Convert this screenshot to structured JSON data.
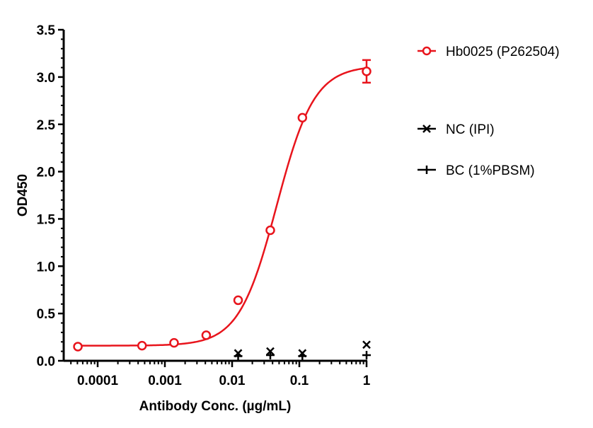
{
  "chart_data": {
    "type": "scatter",
    "title": "",
    "xlabel": "Antibody Conc. (µg/mL)",
    "ylabel": "OD450",
    "xscale": "log",
    "xlim": [
      4e-05,
      1
    ],
    "ylim": [
      0,
      3.5
    ],
    "xticks": [
      {
        "v": 0.0001,
        "label": "0.0001"
      },
      {
        "v": 0.001,
        "label": "0.001"
      },
      {
        "v": 0.01,
        "label": "0.01"
      },
      {
        "v": 0.1,
        "label": "0.1"
      },
      {
        "v": 1,
        "label": "1"
      }
    ],
    "yticks": [
      {
        "v": 0,
        "label": "0.0"
      },
      {
        "v": 0.5,
        "label": "0.5"
      },
      {
        "v": 1,
        "label": "1.0"
      },
      {
        "v": 1.5,
        "label": "1.5"
      },
      {
        "v": 2,
        "label": "2.0"
      },
      {
        "v": 2.5,
        "label": "2.5"
      },
      {
        "v": 3,
        "label": "3.0"
      },
      {
        "v": 3.5,
        "label": "3.5"
      }
    ],
    "grid": false,
    "legend_position": "right",
    "series": [
      {
        "name": "Hb0025 (P262504)",
        "color": "#e8141c",
        "marker": "circle",
        "fit": "4PL sigmoid",
        "x": [
          5.08e-05,
          0.000457,
          0.00137,
          0.00412,
          0.0123,
          0.037,
          0.111,
          1
        ],
        "y": [
          0.15,
          0.16,
          0.19,
          0.27,
          0.64,
          1.38,
          2.57,
          3.06
        ],
        "error": [
          0,
          0,
          0,
          0,
          0,
          0,
          0,
          0.12
        ],
        "fit_params": {
          "bottom": 0.16,
          "top": 3.12,
          "ec50": 0.046,
          "hill": 1.55
        }
      },
      {
        "name": "NC (IPI)",
        "color": "#000000",
        "marker": "x",
        "x": [
          0.0123,
          0.037,
          0.111,
          1
        ],
        "y": [
          0.08,
          0.1,
          0.08,
          0.17
        ]
      },
      {
        "name": "BC (1%PBSM)",
        "color": "#000000",
        "marker": "plus",
        "x": [
          0.0123,
          0.037,
          0.111,
          1
        ],
        "y": [
          0.05,
          0.06,
          0.05,
          0.06
        ]
      }
    ]
  }
}
